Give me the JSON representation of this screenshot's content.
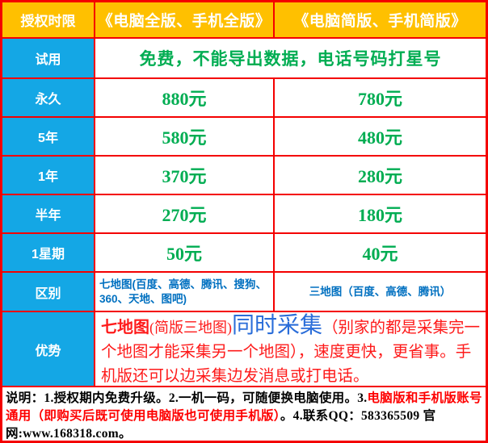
{
  "colors": {
    "border_red": "#f40000",
    "header_bg": "#ffc000",
    "label_bg": "#14a7e5",
    "header_text": "#ffffff",
    "price_green": "#00ad52",
    "difference_blue": "#0070c0",
    "advantage_red": "#fe1a1a",
    "advantage_blue": "#2a6dd9",
    "footer_black": "#000000",
    "footer_red": "#fe0000"
  },
  "header": {
    "duration_label": "授权时限",
    "full_version_label": "《电脑全版、手机全版》",
    "simple_version_label": "《电脑简版、手机简版》"
  },
  "trial_row": {
    "label": "试用",
    "text": "免费，不能导出数据，电话号码打星号"
  },
  "price_rows": [
    {
      "label": "永久",
      "full": "880元",
      "simple": "780元"
    },
    {
      "label": "5年",
      "full": "580元",
      "simple": "480元"
    },
    {
      "label": "1年",
      "full": "370元",
      "simple": "280元"
    },
    {
      "label": "半年",
      "full": "270元",
      "simple": "180元"
    },
    {
      "label": "1星期",
      "full": "50元",
      "simple": "40元"
    }
  ],
  "difference_row": {
    "label": "区别",
    "full": "七地图(百度、高德、腾讯、搜狗、360、天地、图吧)",
    "simple": "三地图（百度、高德、腾讯）"
  },
  "advantage_row": {
    "label": "优势",
    "highlight": "七地图",
    "paren_note": "(简版三地图)",
    "blue_phrase": "同时采集",
    "rest": "（别家的都是采集完一个地图才能采集另一个地图），速度更快，更省事。手机版还可以边采集边发消息或打电话。"
  },
  "footer": {
    "black_part1": "说明：1.授权期内免费升级。2.一机一码，可随便换电脑使用。3.",
    "red_part": "电脑版和手机版账号通用（即购买后既可使用电脑版也可使用手机版）",
    "black_part2": "。4.联系QQ：583365509 官网:www.168318.com。"
  }
}
